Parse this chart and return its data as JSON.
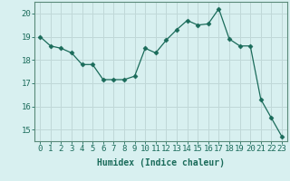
{
  "x": [
    0,
    1,
    2,
    3,
    4,
    5,
    6,
    7,
    8,
    9,
    10,
    11,
    12,
    13,
    14,
    15,
    16,
    17,
    18,
    19,
    20,
    21,
    22,
    23
  ],
  "y": [
    19.0,
    18.6,
    18.5,
    18.3,
    17.8,
    17.8,
    17.15,
    17.15,
    17.15,
    17.3,
    18.5,
    18.3,
    18.85,
    19.3,
    19.7,
    19.5,
    19.55,
    20.2,
    18.9,
    18.6,
    18.6,
    16.3,
    15.5,
    14.7
  ],
  "line_color": "#1a6b5a",
  "marker": "D",
  "markersize": 2.5,
  "bg_color": "#d8f0f0",
  "grid_color": "#c0d8d8",
  "xlabel": "Humidex (Indice chaleur)",
  "ylim": [
    14.5,
    20.5
  ],
  "xlim": [
    -0.5,
    23.5
  ],
  "yticks": [
    15,
    16,
    17,
    18,
    19,
    20
  ],
  "xticks": [
    0,
    1,
    2,
    3,
    4,
    5,
    6,
    7,
    8,
    9,
    10,
    11,
    12,
    13,
    14,
    15,
    16,
    17,
    18,
    19,
    20,
    21,
    22,
    23
  ],
  "xlabel_fontsize": 7,
  "tick_fontsize": 6.5,
  "spine_color": "#5a8a7a",
  "tick_color": "#1a6b5a"
}
